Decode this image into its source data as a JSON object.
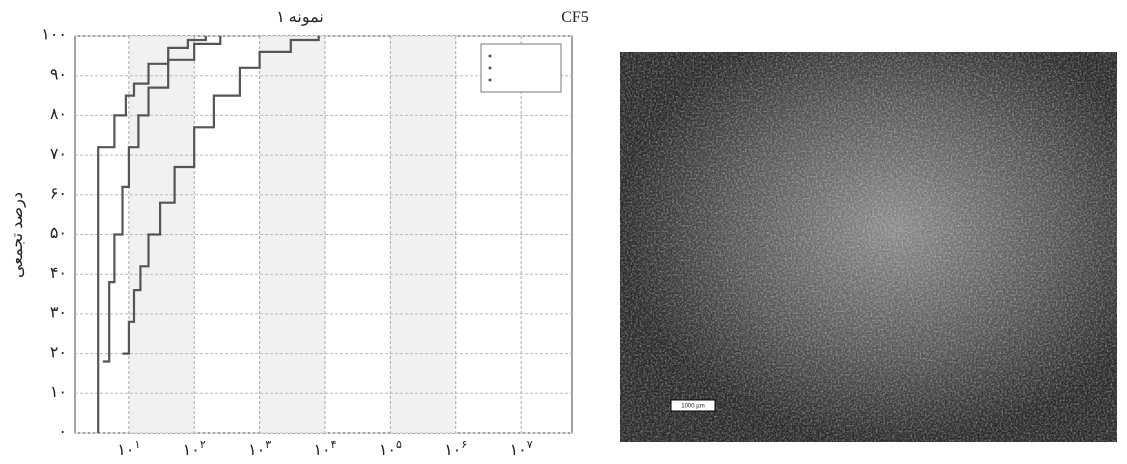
{
  "chart_data": {
    "type": "line",
    "title": "نمونه ۱",
    "corner_label": "CF5",
    "y_label": "درصد تجمعی",
    "log_x": true,
    "grid": true,
    "color": "#555555",
    "xlim": [
      1.5,
      60000000
    ],
    "ylim": [
      0,
      100
    ],
    "xticks": [
      {
        "value": 10,
        "label": "۱۰",
        "exponent": "۱"
      },
      {
        "value": 100,
        "label": "۱۰",
        "exponent": "۲"
      },
      {
        "value": 1000,
        "label": "۱۰",
        "exponent": "۳"
      },
      {
        "value": 10000,
        "label": "۱۰",
        "exponent": "۴"
      },
      {
        "value": 100000,
        "label": "۱۰",
        "exponent": "۵"
      },
      {
        "value": 1000000,
        "label": "۱۰",
        "exponent": "۶"
      },
      {
        "value": 10000000,
        "label": "۱۰",
        "exponent": "۷"
      }
    ],
    "yticks": [
      {
        "value": 0,
        "label": "۰"
      },
      {
        "value": 10,
        "label": "۱۰"
      },
      {
        "value": 20,
        "label": "۲۰"
      },
      {
        "value": 30,
        "label": "۳۰"
      },
      {
        "value": 40,
        "label": "۴۰"
      },
      {
        "value": 50,
        "label": "۵۰"
      },
      {
        "value": 60,
        "label": "۶۰"
      },
      {
        "value": 70,
        "label": "۷۰"
      },
      {
        "value": 80,
        "label": "۸۰"
      },
      {
        "value": 90,
        "label": "۹۰"
      },
      {
        "value": 100,
        "label": "۱۰۰"
      }
    ],
    "series": [
      {
        "color": "#555555",
        "x": [
          3.4,
          3.4,
          3.4,
          6,
          9,
          12,
          20,
          40,
          80,
          150
        ],
        "values": [
          0,
          40,
          72,
          80,
          85,
          88,
          93,
          97,
          99,
          100
        ]
      },
      {
        "color": "#555555",
        "x": [
          4,
          5,
          6,
          8,
          10,
          14,
          20,
          40,
          100,
          250
        ],
        "values": [
          18,
          38,
          50,
          62,
          72,
          80,
          87,
          94,
          98,
          100
        ]
      },
      {
        "color": "#555555",
        "x": [
          8,
          10,
          12,
          15,
          20,
          30,
          50,
          100,
          200,
          500,
          1000,
          3000,
          8000
        ],
        "values": [
          20,
          28,
          36,
          42,
          50,
          58,
          67,
          77,
          85,
          92,
          96,
          99,
          100
        ]
      }
    ],
    "scale_bar": "1000 µm"
  }
}
